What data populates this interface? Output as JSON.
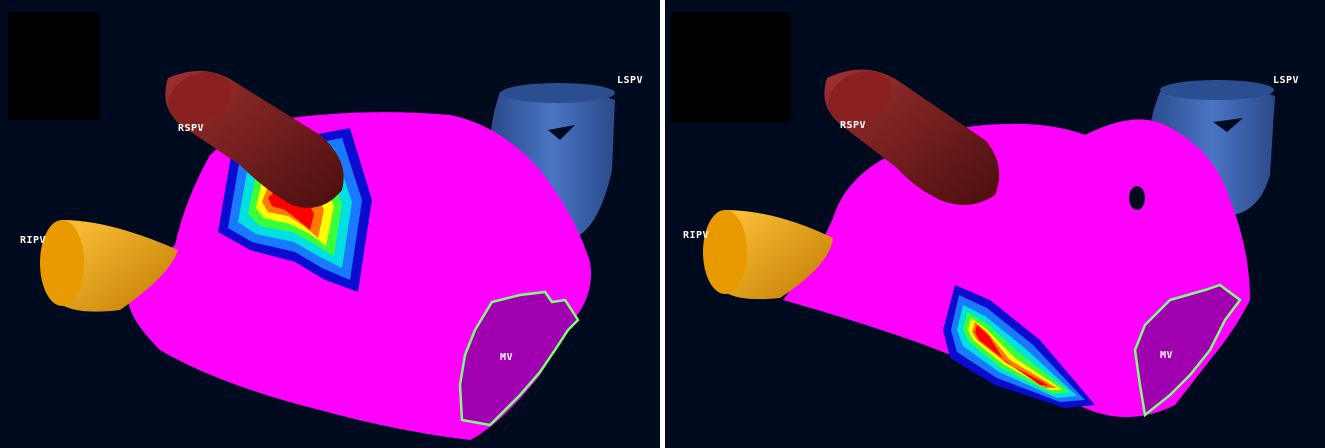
{
  "panels": [
    {
      "labels": {
        "rspv": "RSPV",
        "lspv": "LSPV",
        "ripv": "RIPV",
        "mv": "MV"
      }
    },
    {
      "labels": {
        "rspv": "RSPV",
        "lspv": "LSPV",
        "ripv": "RIPV",
        "mv": "MV"
      }
    }
  ],
  "colors": {
    "background": "#000a1e",
    "chamber": "#ff00ff",
    "rspv": "#7a1a1a",
    "lspv": "#3a63b0",
    "ripv": "#f5a500",
    "mv_fill": "#a000b0",
    "mv_outline": "#7dff7d"
  }
}
